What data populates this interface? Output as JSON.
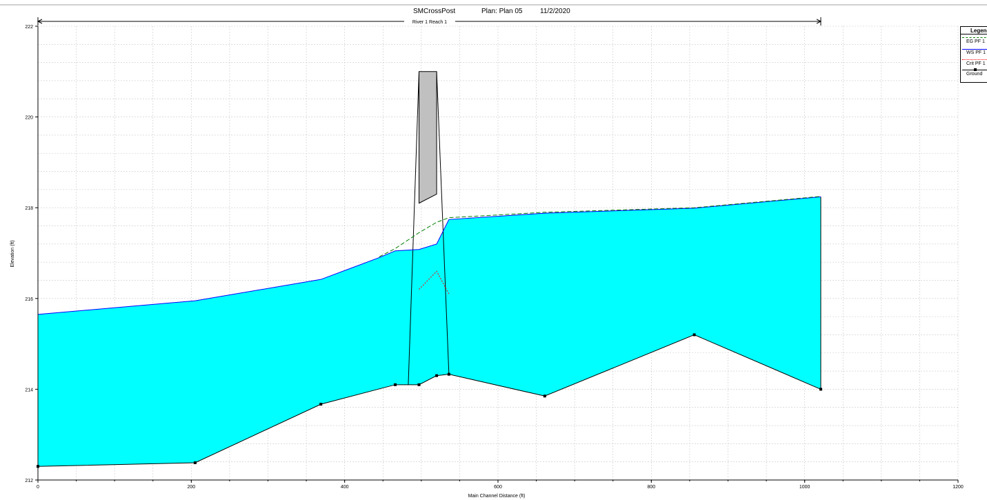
{
  "title": {
    "name": "SMCrossPost",
    "plan": "Plan: Plan 05",
    "date": "11/2/2020"
  },
  "reach_label": "River 1 Reach 1",
  "legend": {
    "title": "Legend",
    "entries": [
      {
        "label": "EG  PF 1",
        "color": "#008000",
        "style": "dashed"
      },
      {
        "label": "WS  PF 1",
        "color": "#0000ff",
        "style": "solid"
      },
      {
        "label": "Crit  PF 1",
        "color": "#ff0000",
        "style": "dotted"
      },
      {
        "label": "Ground",
        "color": "#000000",
        "style": "solid-markers"
      }
    ]
  },
  "colors": {
    "water": "#00ffff",
    "bridge_deck": "#c0c0c0",
    "grid": "#c8c8c8",
    "ground": "#000000",
    "ws": "#0000ff",
    "eg": "#008000",
    "crit": "#ff0000"
  },
  "chart_data": {
    "type": "line",
    "title": "SMCrossPost    Plan: Plan 05    11/2/2020",
    "xlabel": "Main Channel Distance (ft)",
    "ylabel": "Elevation (ft)",
    "xlim": [
      0,
      1200
    ],
    "ylim": [
      212,
      222
    ],
    "x_ticks": [
      0,
      200,
      400,
      600,
      800,
      1000,
      1200
    ],
    "y_ticks": [
      212,
      214,
      216,
      218,
      220,
      222
    ],
    "grid": true,
    "legend_position": "top-right",
    "series": [
      {
        "name": "Ground",
        "x": [
          0,
          205,
          369,
          466,
          497,
          520,
          536,
          661,
          856,
          1021
        ],
        "y": [
          212.3,
          212.38,
          213.67,
          214.1,
          214.1,
          214.3,
          214.33,
          213.85,
          215.2,
          214.0
        ]
      },
      {
        "name": "WS PF 1",
        "x": [
          0,
          205,
          369,
          445,
          466,
          497,
          520,
          536,
          661,
          856,
          1021
        ],
        "y": [
          215.65,
          215.95,
          216.42,
          216.9,
          217.05,
          217.08,
          217.2,
          217.74,
          217.88,
          217.99,
          218.24
        ]
      },
      {
        "name": "EG PF 1",
        "x": [
          445,
          466,
          497,
          520,
          536,
          661,
          856,
          1021
        ],
        "y": [
          216.92,
          217.1,
          217.45,
          217.68,
          217.78,
          217.9,
          218.0,
          218.25
        ]
      },
      {
        "name": "Crit PF 1",
        "x": [
          497,
          520,
          536
        ],
        "y": [
          216.2,
          216.6,
          216.1
        ]
      }
    ],
    "bridge": {
      "deck_x": [
        497,
        520
      ],
      "deck_low_chord_y": [
        218.1,
        218.3
      ],
      "deck_high_y": 221.0,
      "abutment_left_x": [
        483,
        497
      ],
      "abutment_right_x": [
        536,
        520
      ]
    },
    "reach_extent_x": [
      0,
      1021
    ]
  }
}
